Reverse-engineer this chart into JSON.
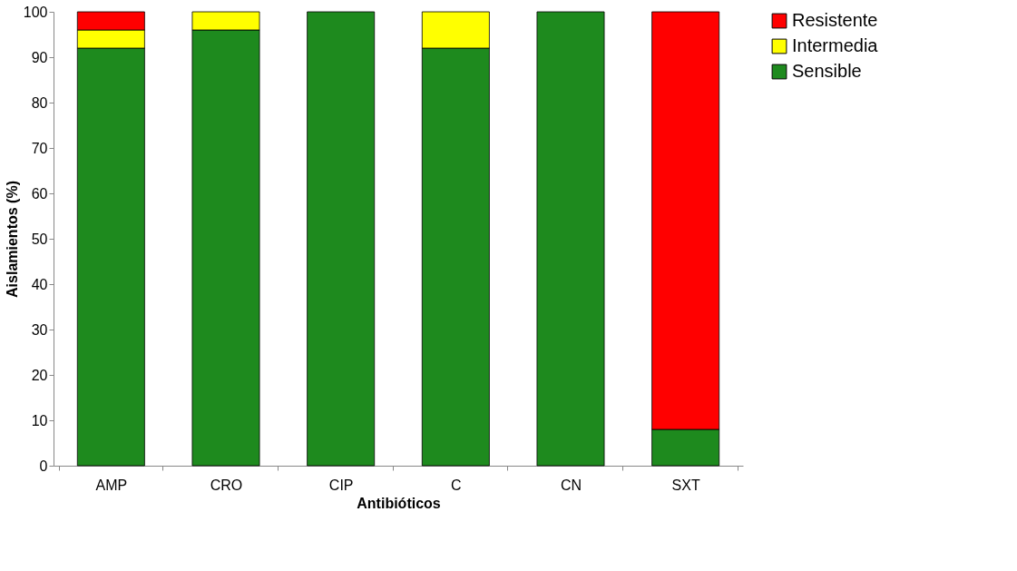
{
  "chart_data": {
    "type": "bar",
    "stacked": true,
    "xlabel": "Antibióticos",
    "ylabel": "Aislamientos (%)",
    "categories": [
      "AMP",
      "CRO",
      "CIP",
      "C",
      "CN",
      "SXT"
    ],
    "series": [
      {
        "name": "Sensible",
        "color": "#1e8a1e",
        "values": [
          92,
          96,
          100,
          92,
          100,
          8
        ]
      },
      {
        "name": "Intermedia",
        "color": "#ffff00",
        "values": [
          4,
          4,
          0,
          8,
          0,
          0
        ]
      },
      {
        "name": "Resistente",
        "color": "#ff0000",
        "values": [
          4,
          0,
          0,
          0,
          0,
          92
        ]
      }
    ],
    "ylim": [
      0,
      100
    ],
    "yticks": [
      0,
      10,
      20,
      30,
      40,
      50,
      60,
      70,
      80,
      90,
      100
    ],
    "grid": false,
    "legend": "right"
  }
}
